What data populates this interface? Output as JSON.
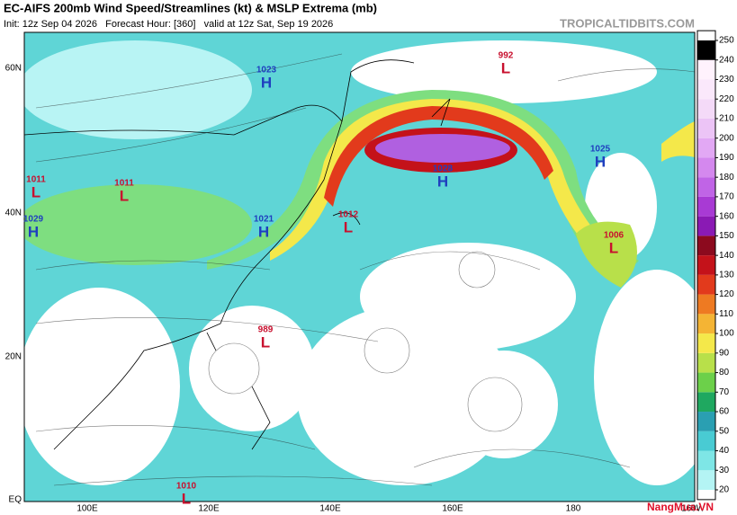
{
  "header": {
    "title": "EC-AIFS 200mb Wind Speed/Streamlines (kt) & MSLP Extrema (mb)",
    "subtitle": "Init: 12z Sep 04 2026   Forecast Hour: [360]   valid at 12z Sat, Sep 19 2026",
    "site": "TROPICALTIDBITS.COM"
  },
  "map": {
    "lat_labels": [
      "60N",
      "40N",
      "20N",
      "EQ"
    ],
    "lon_labels": [
      "100E",
      "120E",
      "140E",
      "160E",
      "180",
      "160W"
    ],
    "systems": [
      {
        "type": "H",
        "value": 1023
      },
      {
        "type": "L",
        "value": 992
      },
      {
        "type": "L",
        "value": 1011
      },
      {
        "type": "L",
        "value": 1011
      },
      {
        "type": "H",
        "value": 1029
      },
      {
        "type": "H",
        "value": 1021
      },
      {
        "type": "L",
        "value": 1012
      },
      {
        "type": "H",
        "value": 1028
      },
      {
        "type": "H",
        "value": 1025
      },
      {
        "type": "L",
        "value": 1006
      },
      {
        "type": "L",
        "value": 989
      },
      {
        "type": "L",
        "value": 1010
      }
    ],
    "colorbar": {
      "ticks": [
        20,
        30,
        40,
        50,
        60,
        70,
        80,
        90,
        100,
        110,
        120,
        130,
        140,
        150,
        160,
        170,
        180,
        190,
        200,
        210,
        220,
        230,
        240,
        250
      ],
      "colors": [
        "#ffffff",
        "#b4f4f4",
        "#7ee6e6",
        "#49cbd3",
        "#2a9fb2",
        "#1fa860",
        "#6cd04a",
        "#b8e04a",
        "#f4e84a",
        "#f4b434",
        "#ee7a22",
        "#e23a1c",
        "#c4121a",
        "#8c0a1e",
        "#8a1ab4",
        "#a83ad4",
        "#c064e6",
        "#d488ee",
        "#e2a8f4",
        "#ecc4f6",
        "#f4daf8",
        "#fae8fb",
        "#fff2fd"
      ]
    }
  },
  "watermark": "NangMua.VN"
}
